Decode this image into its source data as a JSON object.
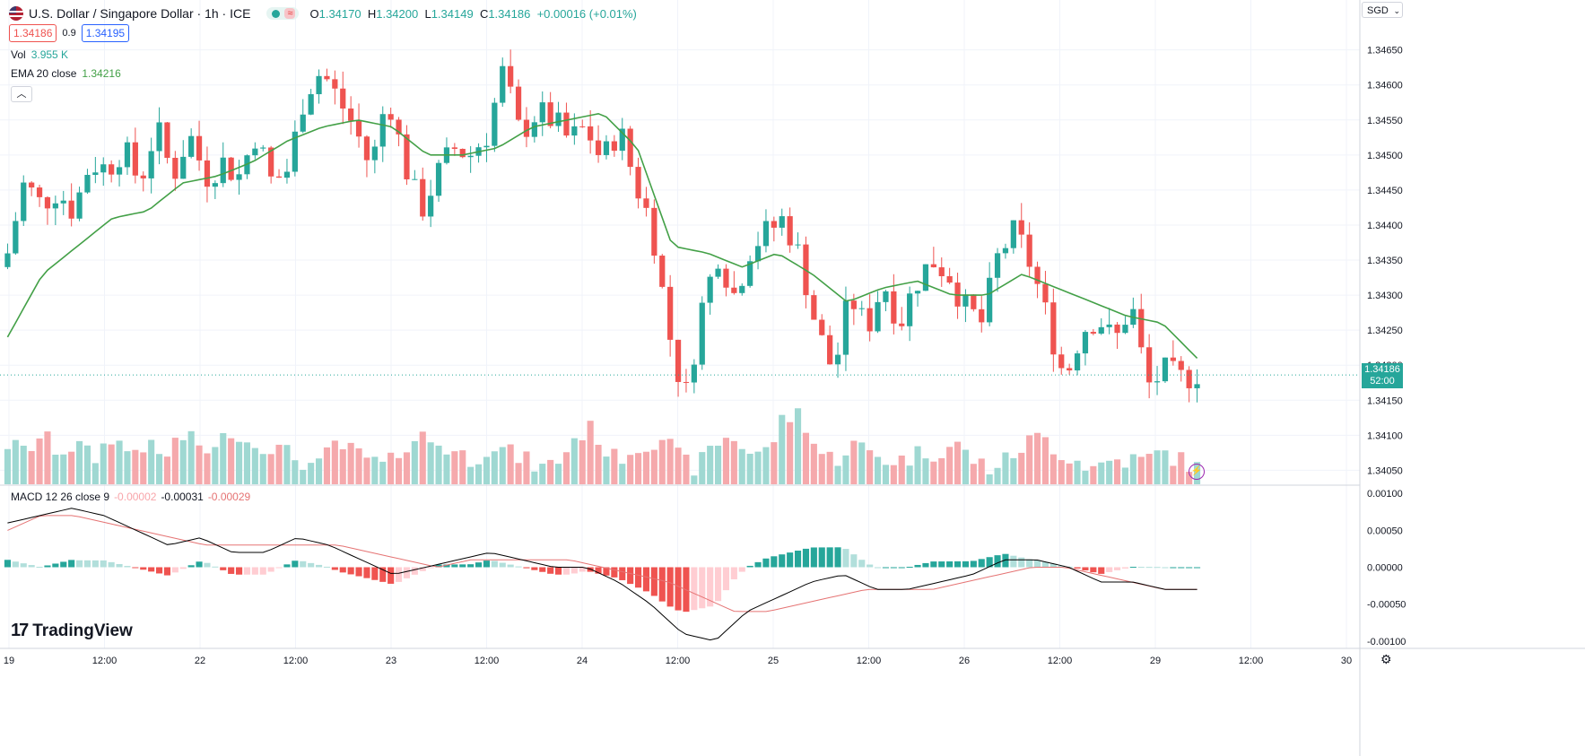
{
  "header": {
    "symbol": "U.S. Dollar / Singapore Dollar · 1h · ICE",
    "ohlc": {
      "o": "1.34170",
      "h": "1.34200",
      "l": "1.34149",
      "c": "1.34186",
      "chg": "+0.00016 (+0.01%)"
    },
    "sell_price": "1.34186",
    "spread": "0.9",
    "buy_price": "1.34195",
    "wave_icon": "≈"
  },
  "indicators": {
    "vol_label": "Vol",
    "vol_value": "3.955 K",
    "ema_label": "EMA 20 close",
    "ema_value": "1.34216",
    "macd_label": "MACD 12 26 close 9",
    "macd_hist": "-0.00002",
    "macd_macd": "-0.00031",
    "macd_signal": "-0.00029"
  },
  "currency": "SGD",
  "last_price": {
    "price": "1.34186",
    "countdown": "52:00"
  },
  "brand": "TradingView",
  "colors": {
    "up": "#26a69a",
    "down": "#ef5350",
    "ema": "#43a047",
    "macd": "#000000",
    "signal": "#e57373"
  },
  "chart_data": {
    "type": "candlestick",
    "price_axis": {
      "min": 1.3403,
      "max": 1.3467,
      "ticks": [
        "1.34050",
        "1.34100",
        "1.34150",
        "1.34200",
        "1.34250",
        "1.34300",
        "1.34350",
        "1.34400",
        "1.34450",
        "1.34500",
        "1.34550",
        "1.34600",
        "1.34650"
      ]
    },
    "macd_axis": {
      "min": -0.00011,
      "max": 0.00011,
      "ticks": [
        "0.00100",
        "0.00050",
        "0.00000",
        "-0.00050",
        "-0.00100"
      ]
    },
    "x_ticks": [
      "19",
      "12:00",
      "22",
      "12:00",
      "23",
      "12:00",
      "24",
      "12:00",
      "25",
      "12:00",
      "26",
      "12:00",
      "29",
      "12:00",
      "30"
    ],
    "anchors": [
      1.3436,
      1.3446,
      1.3443,
      1.3445,
      1.3442,
      1.3449,
      1.3448,
      1.3451,
      1.3446,
      1.3454,
      1.3447,
      1.3453,
      1.3447,
      1.3449,
      1.3447,
      1.3453,
      1.3446,
      1.3448,
      1.3459,
      1.3462,
      1.3458,
      1.3454,
      1.3448,
      1.3459,
      1.3449,
      1.3442,
      1.3447,
      1.3451,
      1.345,
      1.3453,
      1.3462,
      1.3453,
      1.3456,
      1.3455,
      1.3452,
      1.3454,
      1.3449,
      1.3454,
      1.3446,
      1.344,
      1.3425,
      1.3415,
      1.3428,
      1.3436,
      1.343,
      1.3437,
      1.3439,
      1.3441,
      1.3435,
      1.3425,
      1.3419,
      1.343,
      1.3425,
      1.3432,
      1.3426,
      1.3432,
      1.3435,
      1.3433,
      1.3428,
      1.3426,
      1.3436,
      1.3439,
      1.3434,
      1.3426,
      1.3418,
      1.3425,
      1.3427,
      1.3423,
      1.3429,
      1.3417,
      1.3419,
      1.3418,
      1.3419
    ],
    "ema_anchors": [
      1.3424,
      1.3433,
      1.3437,
      1.3441,
      1.3442,
      1.3446,
      1.3447,
      1.3449,
      1.3452,
      1.3454,
      1.3455,
      1.3454,
      1.345,
      1.345,
      1.3451,
      1.3454,
      1.3455,
      1.3456,
      1.3451,
      1.3437,
      1.3436,
      1.3434,
      1.3436,
      1.3433,
      1.3429,
      1.3431,
      1.3432,
      1.343,
      1.343,
      1.3433,
      1.3431,
      1.3429,
      1.3427,
      1.3426,
      1.3421
    ],
    "volume_anchors": [
      0.5,
      0.4,
      0.6,
      0.4,
      0.5,
      0.3,
      0.6,
      0.4,
      0.5,
      0.3,
      0.6,
      0.5,
      0.4,
      0.7,
      0.5,
      0.5,
      0.4,
      0.3,
      0.2,
      0.5,
      0.4,
      0.3,
      0.2,
      0.5,
      0.6,
      0.5,
      0.4,
      0.3,
      0.5,
      0.4,
      0.3,
      0.2,
      0.3,
      0.6,
      0.7,
      0.3,
      0.4,
      0.5,
      0.6,
      0.3,
      0.2,
      0.5,
      0.6,
      0.4,
      0.4,
      0.8,
      0.9,
      0.4,
      0.3,
      0.5,
      0.4,
      0.3,
      0.3,
      0.4,
      0.4,
      0.5,
      0.3,
      0.2,
      0.3,
      0.5,
      0.6,
      0.4,
      0.3,
      0.2,
      0.3,
      0.3,
      0.3,
      0.4,
      0.3,
      0.2
    ],
    "macd_anchors": [
      6e-05,
      7e-05,
      8e-05,
      7e-05,
      5e-05,
      3e-05,
      4e-05,
      2e-05,
      2e-05,
      4e-05,
      3e-05,
      1e-05,
      -1e-05,
      0.0,
      1e-05,
      2e-05,
      1e-05,
      0.0,
      0.0,
      -2e-05,
      -5e-05,
      -9e-05,
      -0.0001,
      -6e-05,
      -4e-05,
      -2e-05,
      -1e-05,
      -3e-05,
      -3e-05,
      -2e-05,
      -1e-05,
      1e-05,
      1e-05,
      0.0,
      -2e-05,
      -2e-05,
      -3e-05,
      -3e-05
    ],
    "signal_anchors": [
      5e-05,
      7e-05,
      7e-05,
      6e-05,
      5e-05,
      4e-05,
      3e-05,
      3e-05,
      3e-05,
      3e-05,
      3e-05,
      2e-05,
      1e-05,
      0.0,
      1e-05,
      1e-05,
      1e-05,
      1e-05,
      0.0,
      -1e-05,
      -2e-05,
      -4e-05,
      -6e-05,
      -6e-05,
      -5e-05,
      -4e-05,
      -3e-05,
      -3e-05,
      -3e-05,
      -2e-05,
      -1e-05,
      0.0,
      0.0,
      -1e-05,
      -2e-05,
      -3e-05,
      -3e-05
    ]
  }
}
